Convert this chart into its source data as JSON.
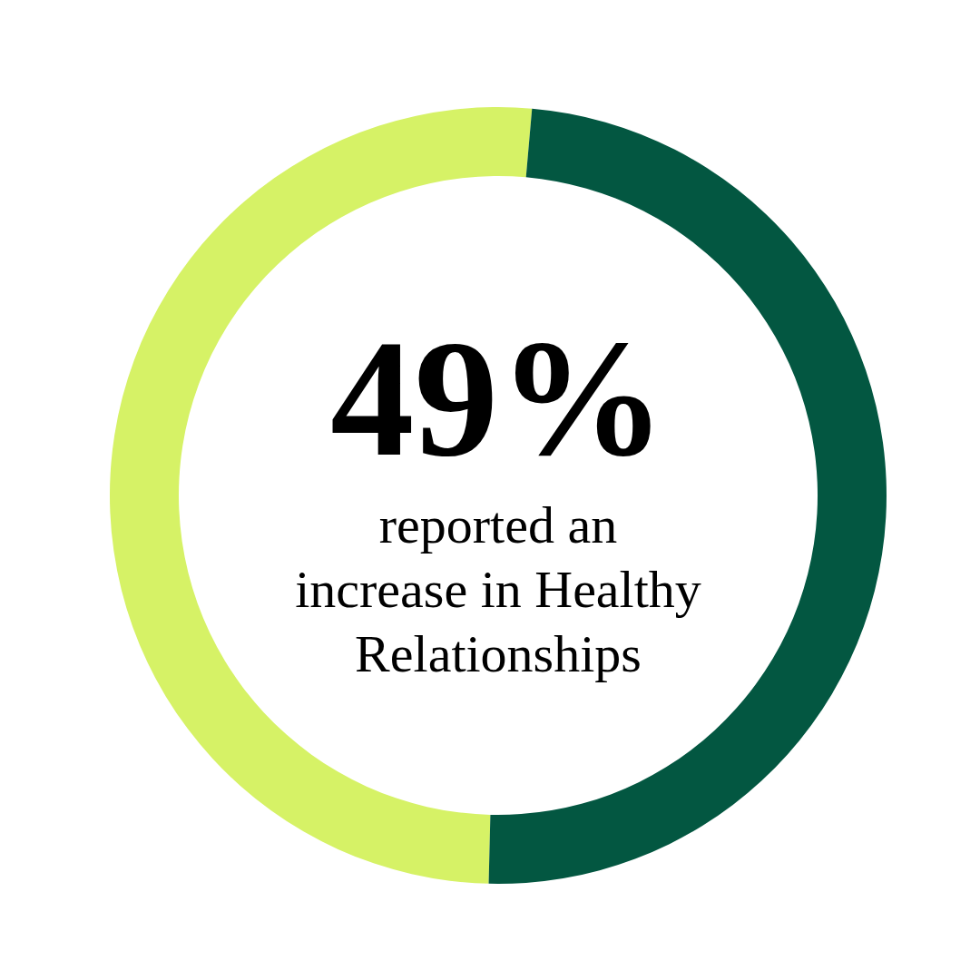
{
  "chart_data": {
    "type": "donut",
    "categories": [
      null,
      null
    ],
    "values": [
      49,
      51
    ],
    "colors": [
      "#035741",
      "#d6f266"
    ],
    "value_labels": [
      "49%",
      null
    ],
    "annotations": [
      "reported an increase in Healthy Relationships"
    ]
  }
}
